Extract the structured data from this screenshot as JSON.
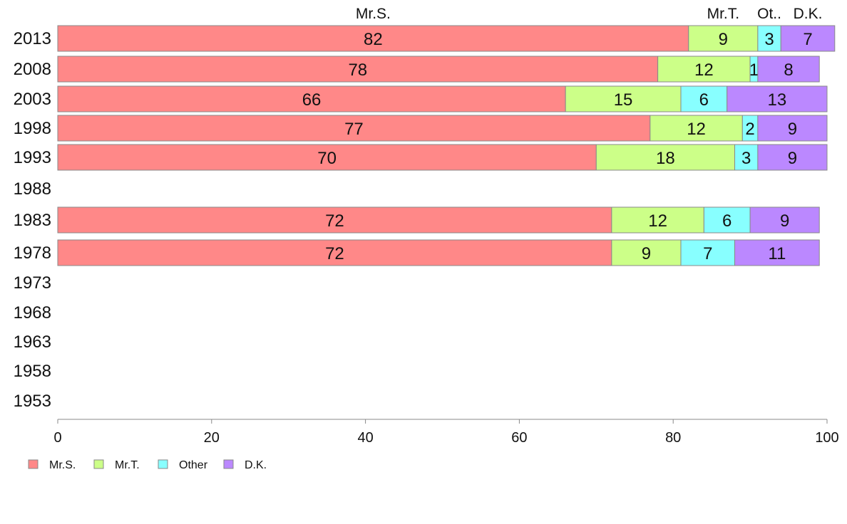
{
  "chart_data": {
    "type": "bar",
    "orientation": "horizontal",
    "stacked": true,
    "categories": [
      "2013",
      "2008",
      "2003",
      "1998",
      "1993",
      "1988",
      "1983",
      "1978",
      "1973",
      "1968",
      "1963",
      "1958",
      "1953"
    ],
    "series": [
      {
        "name": "Mr.S.",
        "color": "#ff8888",
        "values": [
          82,
          78,
          66,
          77,
          70,
          null,
          72,
          72,
          null,
          null,
          null,
          null,
          null
        ]
      },
      {
        "name": "Mr.T.",
        "color": "#ccff88",
        "values": [
          9,
          12,
          15,
          12,
          18,
          null,
          12,
          9,
          null,
          null,
          null,
          null,
          null
        ]
      },
      {
        "name": "Other",
        "color": "#88ffff",
        "values": [
          3,
          1,
          6,
          2,
          3,
          null,
          6,
          7,
          null,
          null,
          null,
          null,
          null
        ]
      },
      {
        "name": "D.K.",
        "color": "#bb88ff",
        "values": [
          7,
          8,
          13,
          9,
          9,
          null,
          9,
          11,
          null,
          null,
          null,
          null,
          null
        ]
      }
    ],
    "top_labels": [
      "Mr.S.",
      "Mr.T.",
      "Ot..",
      "D.K."
    ],
    "xlim": [
      0,
      100
    ],
    "xticks": [
      "0",
      "20",
      "40",
      "60",
      "80",
      "100"
    ],
    "legend": {
      "position": "bottom-left",
      "items": [
        "Mr.S.",
        "Mr.T.",
        "Other",
        "D.K."
      ]
    },
    "grid": false
  }
}
